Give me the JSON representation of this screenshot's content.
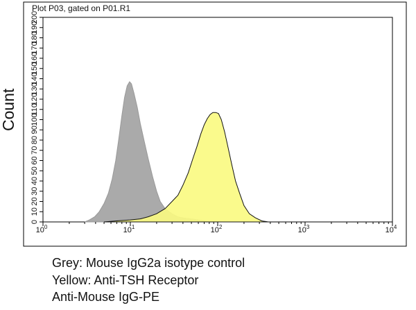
{
  "chart_data": {
    "type": "area",
    "title": "Plot P03, gated on P01.R1",
    "ylabel": "Count",
    "xlabel": "",
    "xscale": "log",
    "xlim": [
      1,
      10000
    ],
    "ylim": [
      0,
      200
    ],
    "y_ticks": [
      0,
      10,
      20,
      30,
      40,
      50,
      60,
      70,
      80,
      90,
      100,
      110,
      120,
      130,
      140,
      150,
      160,
      170,
      180,
      190,
      200
    ],
    "x_ticks": [
      {
        "value": 1,
        "base": "10",
        "exp": "0"
      },
      {
        "value": 10,
        "base": "10",
        "exp": "1"
      },
      {
        "value": 100,
        "base": "10",
        "exp": "2"
      },
      {
        "value": 1000,
        "base": "10",
        "exp": "3"
      },
      {
        "value": 10000,
        "base": "10",
        "exp": "4"
      }
    ],
    "grid": false,
    "series": [
      {
        "color": "#aaaaaa",
        "stroke": "#999999",
        "points": [
          [
            3.0,
            0
          ],
          [
            3.4,
            2
          ],
          [
            3.9,
            5
          ],
          [
            4.4,
            10
          ],
          [
            5.0,
            18
          ],
          [
            5.6,
            28
          ],
          [
            6.2,
            42
          ],
          [
            6.8,
            60
          ],
          [
            7.4,
            82
          ],
          [
            8.0,
            104
          ],
          [
            8.6,
            122
          ],
          [
            9.2,
            133
          ],
          [
            9.8,
            137
          ],
          [
            10.3,
            135
          ],
          [
            11.0,
            126
          ],
          [
            12.0,
            112
          ],
          [
            13.0,
            96
          ],
          [
            14.5,
            78
          ],
          [
            16.0,
            62
          ],
          [
            18.0,
            44
          ],
          [
            20.0,
            30
          ],
          [
            22.0,
            20
          ],
          [
            25.0,
            13
          ],
          [
            30.0,
            8
          ],
          [
            35.0,
            5
          ],
          [
            40.0,
            4
          ],
          [
            50.0,
            3
          ],
          [
            60.0,
            2
          ],
          [
            70.0,
            1
          ],
          [
            80.0,
            0
          ]
        ]
      },
      {
        "color": "#fafa82",
        "stroke": "#111111",
        "points": [
          [
            5.0,
            0
          ],
          [
            7.0,
            1
          ],
          [
            10.0,
            2
          ],
          [
            13.0,
            3
          ],
          [
            16.0,
            5
          ],
          [
            20.0,
            8
          ],
          [
            25.0,
            13
          ],
          [
            30.0,
            20
          ],
          [
            35.0,
            26
          ],
          [
            40.0,
            36
          ],
          [
            46.0,
            48
          ],
          [
            52.0,
            62
          ],
          [
            58.0,
            74
          ],
          [
            64.0,
            86
          ],
          [
            70.0,
            95
          ],
          [
            76.0,
            101
          ],
          [
            82.0,
            105
          ],
          [
            88.0,
            107
          ],
          [
            95.0,
            107
          ],
          [
            102.0,
            106
          ],
          [
            110.0,
            100
          ],
          [
            120.0,
            88
          ],
          [
            132.0,
            72
          ],
          [
            145.0,
            56
          ],
          [
            160.0,
            40
          ],
          [
            178.0,
            28
          ],
          [
            200.0,
            16
          ],
          [
            230.0,
            8
          ],
          [
            270.0,
            4
          ],
          [
            320.0,
            1
          ],
          [
            380.0,
            0
          ]
        ]
      }
    ]
  },
  "caption": [
    "Grey: Mouse IgG2a isotype control",
    "Yellow: Anti-TSH Receptor",
    "Anti-Mouse IgG-PE"
  ]
}
